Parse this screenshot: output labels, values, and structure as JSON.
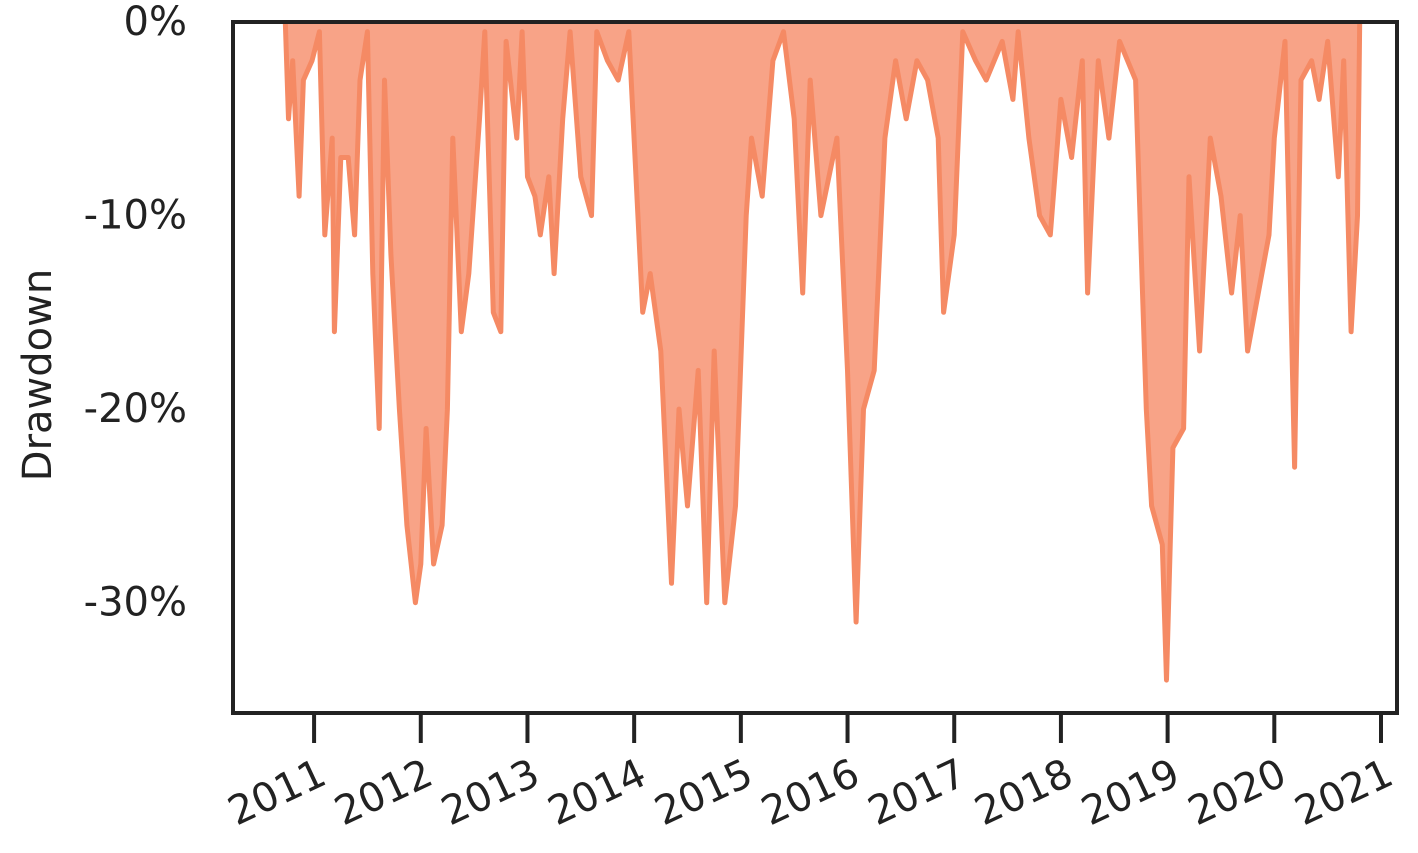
{
  "chart_data": {
    "type": "area",
    "y_label": "Drawdown",
    "color": "#f58a64",
    "area_color": "#f8a387",
    "xlim": [
      2010.24,
      2021.15
    ],
    "xticks": [
      2011,
      2012,
      2013,
      2014,
      2015,
      2016,
      2017,
      2018,
      2019,
      2020,
      2021
    ],
    "ylim": [
      -35.7,
      0
    ],
    "yticks": [
      {
        "value": 0,
        "label": "0%"
      },
      {
        "value": -10,
        "label": "-10%"
      },
      {
        "value": -20,
        "label": "-20%"
      },
      {
        "value": -30,
        "label": "-30%"
      }
    ],
    "x": [
      2010.73,
      2010.76,
      2010.8,
      2010.86,
      2010.9,
      2010.98,
      2011.05,
      2011.1,
      2011.17,
      2011.19,
      2011.25,
      2011.32,
      2011.38,
      2011.43,
      2011.5,
      2011.55,
      2011.61,
      2011.66,
      2011.72,
      2011.8,
      2011.87,
      2011.95,
      2012.0,
      2012.05,
      2012.12,
      2012.2,
      2012.25,
      2012.3,
      2012.38,
      2012.45,
      2012.55,
      2012.6,
      2012.68,
      2012.75,
      2012.8,
      2012.9,
      2012.95,
      2013.0,
      2013.07,
      2013.12,
      2013.2,
      2013.25,
      2013.33,
      2013.4,
      2013.5,
      2013.6,
      2013.65,
      2013.75,
      2013.85,
      2013.95,
      2014.08,
      2014.15,
      2014.25,
      2014.35,
      2014.42,
      2014.5,
      2014.6,
      2014.68,
      2014.75,
      2014.85,
      2014.95,
      2015.05,
      2015.1,
      2015.2,
      2015.3,
      2015.4,
      2015.5,
      2015.58,
      2015.65,
      2015.75,
      2015.9,
      2016.0,
      2016.08,
      2016.15,
      2016.25,
      2016.35,
      2016.45,
      2016.55,
      2016.65,
      2016.75,
      2016.85,
      2016.9,
      2017.0,
      2017.08,
      2017.2,
      2017.3,
      2017.45,
      2017.55,
      2017.6,
      2017.7,
      2017.8,
      2017.9,
      2018.0,
      2018.1,
      2018.2,
      2018.25,
      2018.35,
      2018.45,
      2018.55,
      2018.7,
      2018.8,
      2018.85,
      2018.95,
      2018.99,
      2019.05,
      2019.15,
      2019.2,
      2019.3,
      2019.4,
      2019.5,
      2019.6,
      2019.68,
      2019.75,
      2019.85,
      2019.95,
      2020.0,
      2020.1,
      2020.19,
      2020.25,
      2020.35,
      2020.42,
      2020.5,
      2020.6,
      2020.65,
      2020.72,
      2020.78,
      2020.8
    ],
    "values": [
      0,
      -5,
      -2,
      -9,
      -3,
      -2,
      -0.5,
      -11,
      -6,
      -16,
      -7,
      -7,
      -11,
      -3,
      -0.5,
      -13,
      -21,
      -3,
      -12,
      -20,
      -26,
      -30,
      -28,
      -21,
      -28,
      -26,
      -20,
      -6,
      -16,
      -13,
      -5,
      -0.5,
      -15,
      -16,
      -1,
      -6,
      -0.5,
      -8,
      -9,
      -11,
      -8,
      -13,
      -5,
      -0.5,
      -8,
      -10,
      -0.5,
      -2,
      -3,
      -0.5,
      -15,
      -13,
      -17,
      -29,
      -20,
      -25,
      -18,
      -30,
      -17,
      -30,
      -25,
      -10,
      -6,
      -9,
      -2,
      -0.5,
      -5,
      -14,
      -3,
      -10,
      -6,
      -18,
      -31,
      -20,
      -18,
      -6,
      -2,
      -5,
      -2,
      -3,
      -6,
      -15,
      -11,
      -0.5,
      -2,
      -3,
      -1,
      -4,
      -0.5,
      -6,
      -10,
      -11,
      -4,
      -7,
      -2,
      -14,
      -2,
      -6,
      -1,
      -3,
      -20,
      -25,
      -27,
      -34,
      -22,
      -21,
      -8,
      -17,
      -6,
      -9,
      -14,
      -10,
      -17,
      -14,
      -11,
      -6,
      -1,
      -23,
      -3,
      -2,
      -4,
      -1,
      -8,
      -2,
      -16,
      -10,
      0
    ]
  }
}
